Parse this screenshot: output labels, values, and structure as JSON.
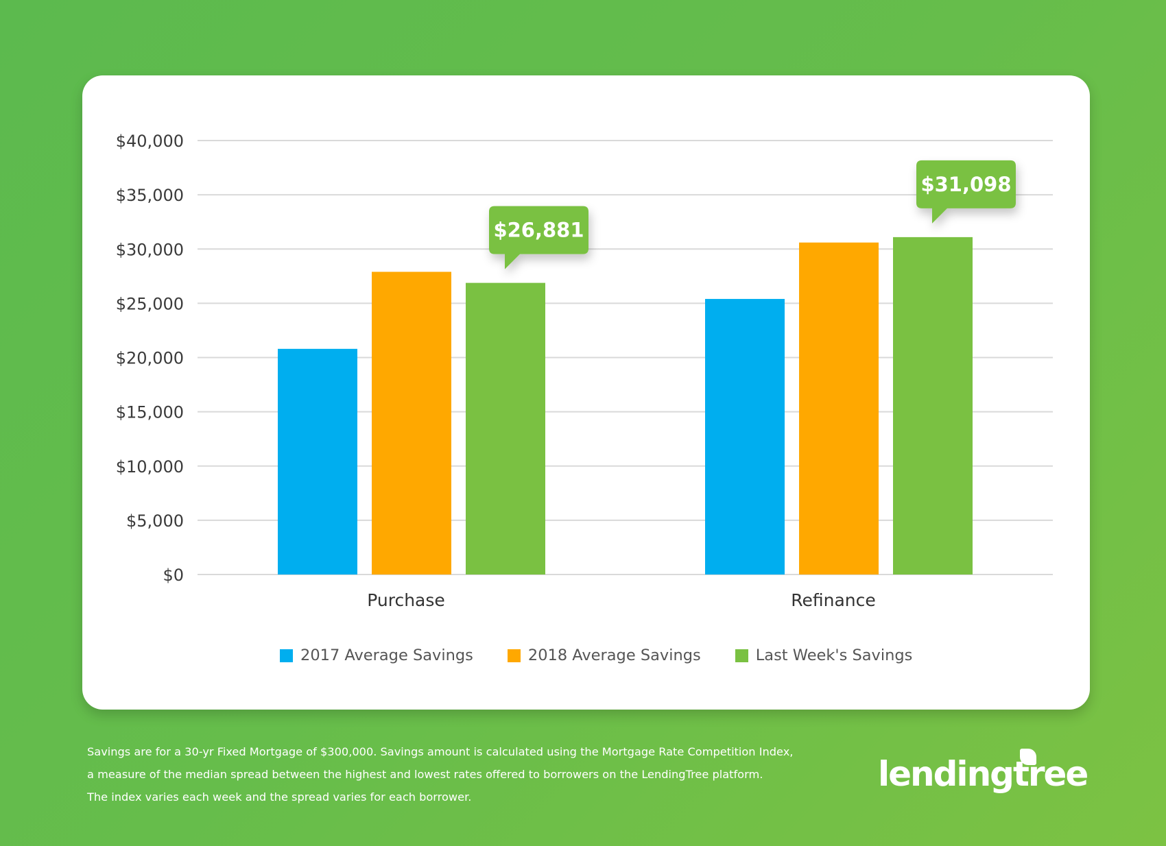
{
  "chart_data": {
    "type": "bar",
    "title": "",
    "xlabel": "",
    "ylabel": "",
    "categories": [
      "Purchase",
      "Refinance"
    ],
    "series": [
      {
        "name": "2017 Average Savings",
        "color": "#00aeef",
        "values": [
          20800,
          25400
        ]
      },
      {
        "name": "2018 Average Savings",
        "color": "#ffa800",
        "values": [
          27900,
          30600
        ]
      },
      {
        "name": "Last Week's Savings",
        "color": "#7ac142",
        "values": [
          26881,
          31098
        ]
      }
    ],
    "ylim": [
      0,
      40000
    ],
    "yticks": [
      0,
      5000,
      10000,
      15000,
      20000,
      25000,
      30000,
      35000,
      40000
    ],
    "ytick_labels": [
      "$0",
      "$5,000",
      "$10,000",
      "$15,000",
      "$20,000",
      "$25,000",
      "$30,000",
      "$35,000",
      "$40,000"
    ],
    "grid": true,
    "legend_position": "bottom-center",
    "annotations": [
      {
        "category": "Purchase",
        "series": "Last Week's Savings",
        "text": "$26,881"
      },
      {
        "category": "Refinance",
        "series": "Last Week's Savings",
        "text": "$31,098"
      }
    ]
  },
  "legend": [
    {
      "label": "2017 Average Savings",
      "color": "#00aeef"
    },
    {
      "label": "2018 Average Savings",
      "color": "#ffa800"
    },
    {
      "label": "Last Week's Savings",
      "color": "#7ac142"
    }
  ],
  "footnote": {
    "lines": [
      "Savings are for a 30-yr Fixed Mortgage of $300,000. Savings amount is calculated using the Mortgage Rate Competition Index,",
      "a measure of the median spread between the highest and lowest rates offered to borrowers on the LendingTree platform.",
      "The index varies each week and the spread varies for each borrower."
    ]
  },
  "brand": {
    "logo_text": "lendingtree",
    "registered_mark": "®",
    "background_start": "#5cba4e",
    "background_end": "#7cc243",
    "callout_color": "#7ac142"
  }
}
